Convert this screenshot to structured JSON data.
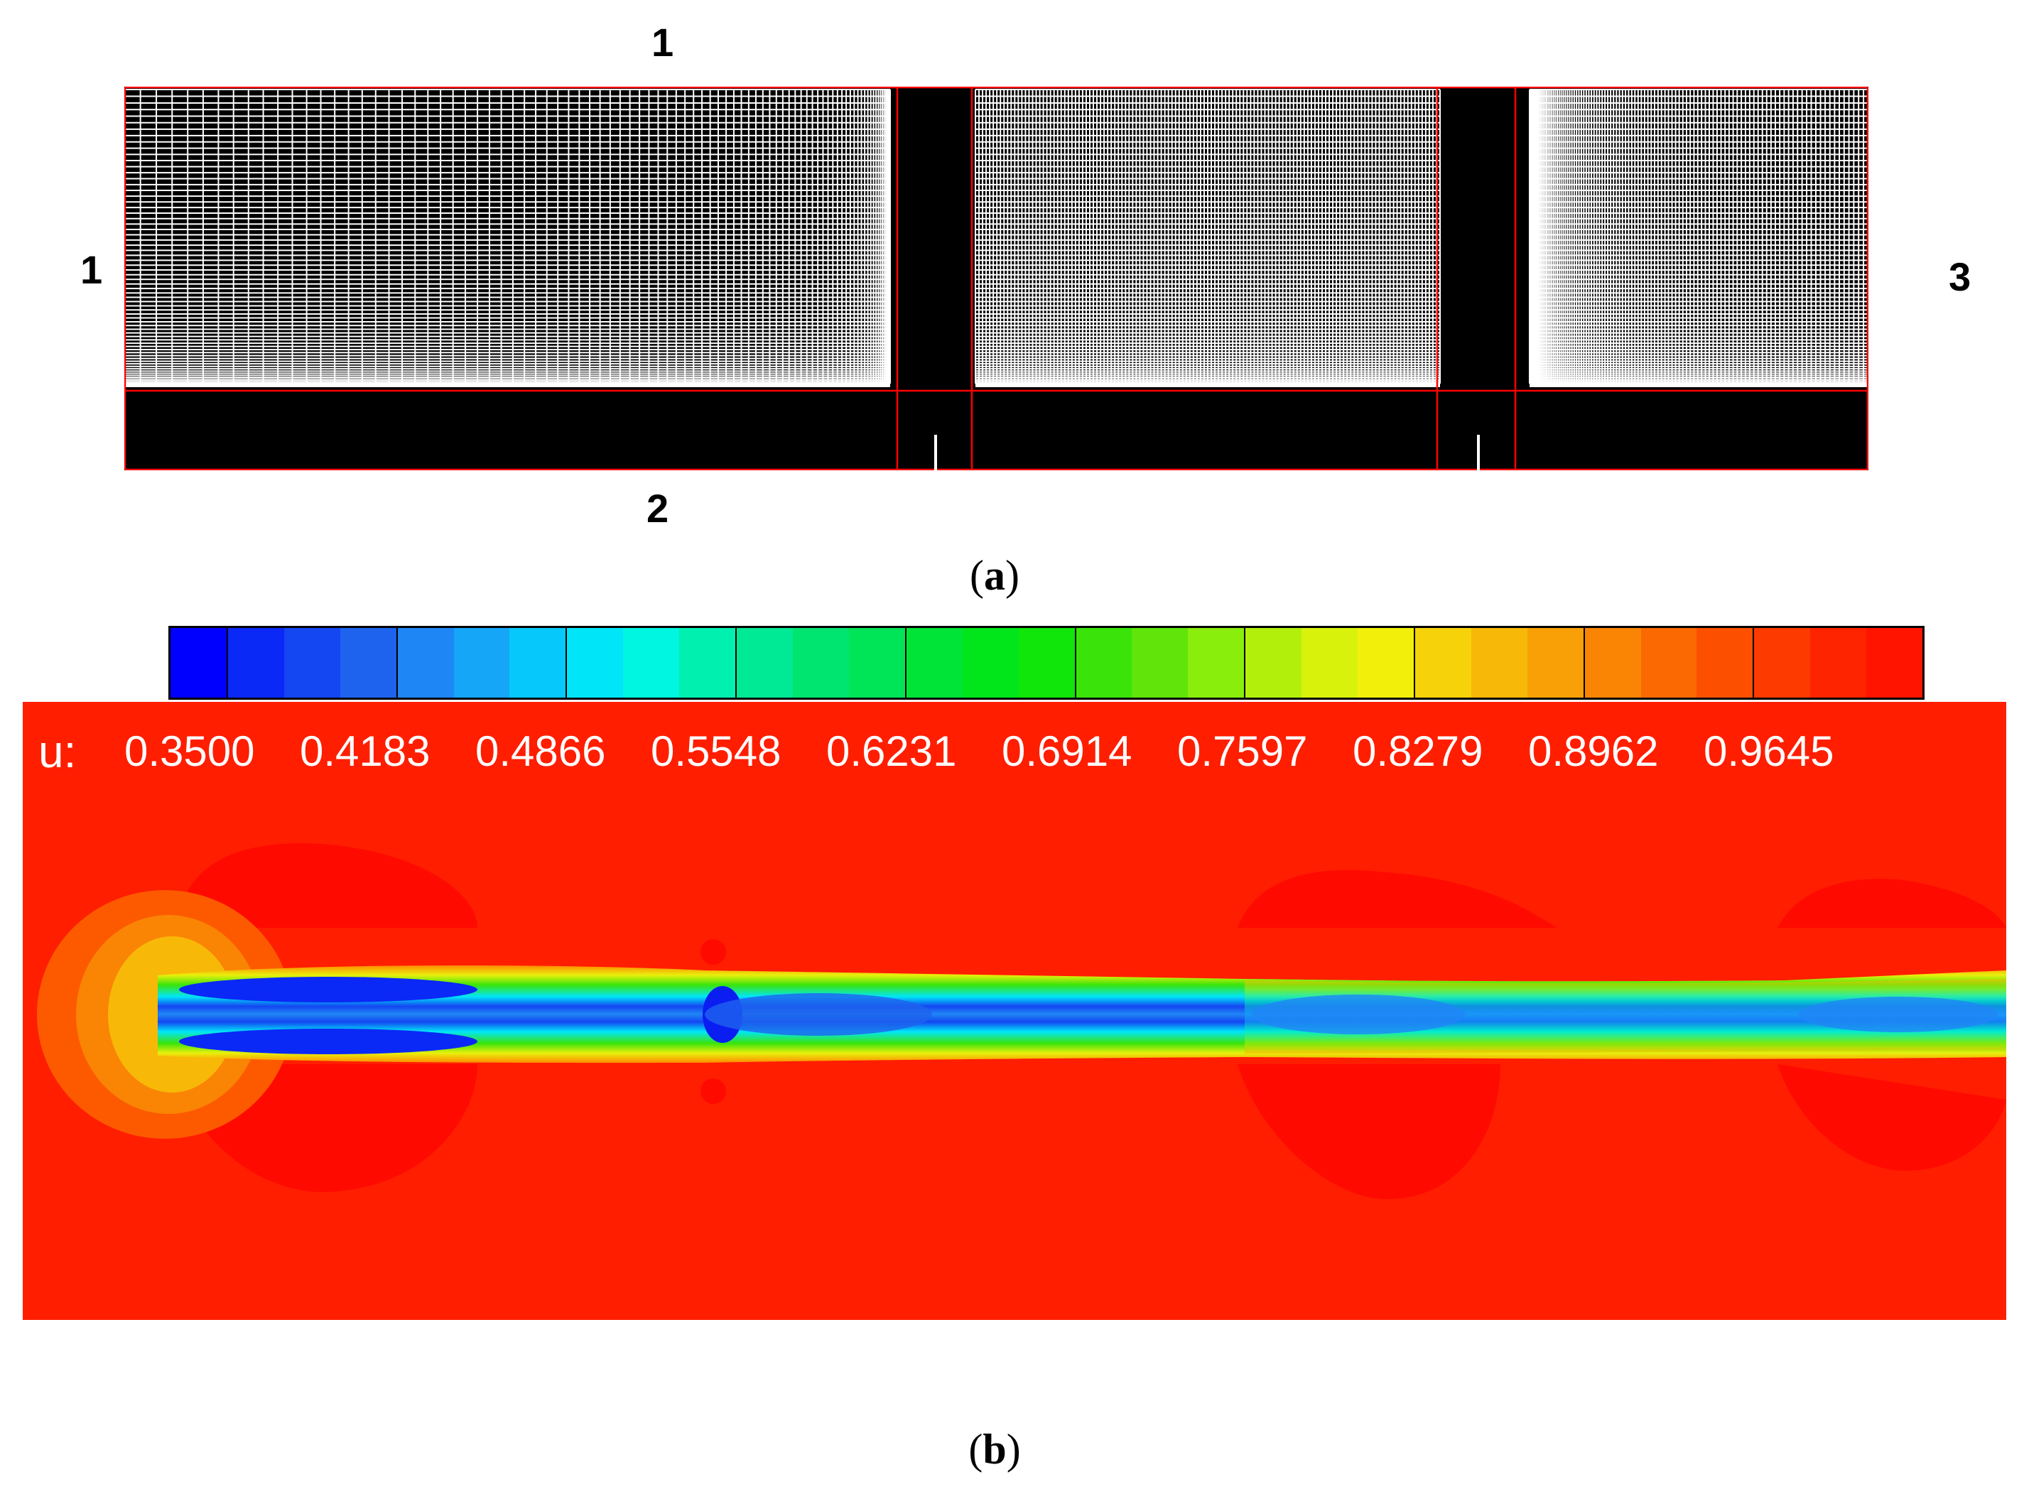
{
  "panel_a": {
    "labels": {
      "top": "1",
      "left": "1",
      "right": "3",
      "bottom": "2"
    },
    "caption_letter": "a"
  },
  "panel_b": {
    "variable": "u:",
    "ticks": [
      "0.3500",
      "0.4183",
      "0.4866",
      "0.5548",
      "0.6231",
      "0.6914",
      "0.7597",
      "0.8279",
      "0.8962",
      "0.9645"
    ],
    "colormap": [
      "#0000ff",
      "#0a28f6",
      "#1446f2",
      "#1e63ee",
      "#1f86f5",
      "#15a6f8",
      "#06c8fb",
      "#00e6f8",
      "#00f6e0",
      "#00f0b0",
      "#00ea96",
      "#00e470",
      "#00e458",
      "#00e438",
      "#00e61a",
      "#10e60a",
      "#3ae40a",
      "#60e40a",
      "#8aee0c",
      "#b2f00c",
      "#d8f20c",
      "#f2f00a",
      "#f6d20a",
      "#f8b808",
      "#f9a006",
      "#fa8404",
      "#fb6a02",
      "#fc5000",
      "#fd3a00",
      "#fe2400",
      "#ff1400"
    ],
    "caption_letter": "b"
  }
}
